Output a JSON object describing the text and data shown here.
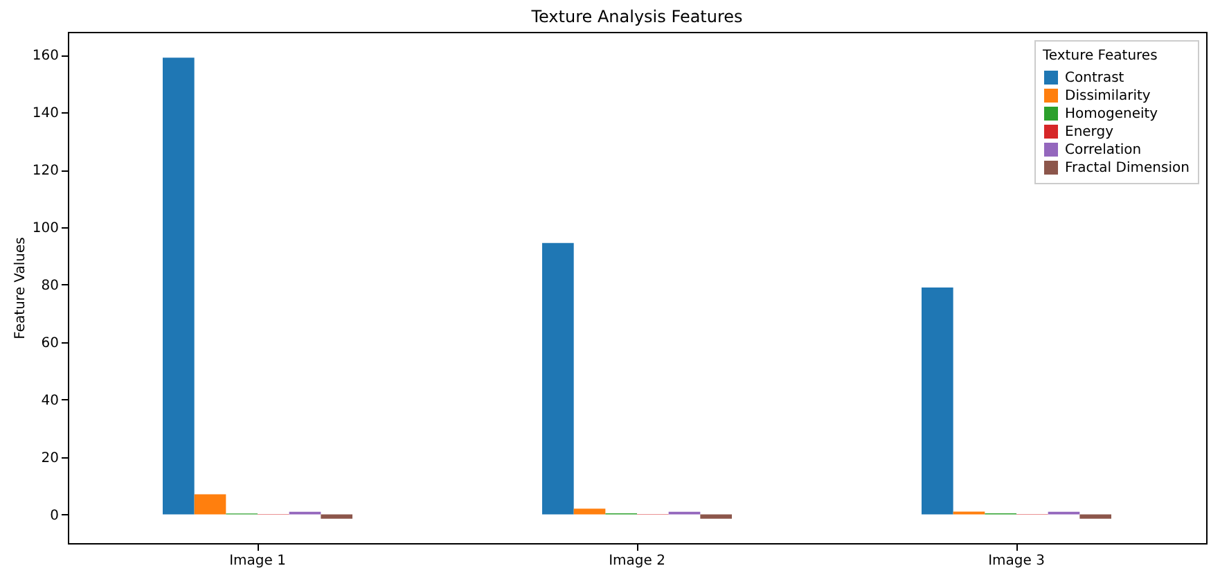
{
  "chart_data": {
    "type": "bar",
    "title": "Texture Analysis Features",
    "ylabel": "Feature Values",
    "legend_title": "Texture Features",
    "categories": [
      "Image 1",
      "Image 2",
      "Image 3"
    ],
    "series": [
      {
        "name": "Contrast",
        "color": "#1f77b4",
        "values": [
          159,
          94.5,
          79
        ]
      },
      {
        "name": "Dissimilarity",
        "color": "#ff7f0e",
        "values": [
          7,
          2,
          1
        ]
      },
      {
        "name": "Homogeneity",
        "color": "#2ca02c",
        "values": [
          0.3,
          0.4,
          0.4
        ]
      },
      {
        "name": "Energy",
        "color": "#d62728",
        "values": [
          0.1,
          0.1,
          0.1
        ]
      },
      {
        "name": "Correlation",
        "color": "#9467bd",
        "values": [
          0.9,
          0.9,
          0.9
        ]
      },
      {
        "name": "Fractal Dimension",
        "color": "#8c564b",
        "values": [
          -1.5,
          -1.5,
          -1.5
        ]
      }
    ],
    "ylim": [
      -10,
      168
    ],
    "yticks": [
      0,
      20,
      40,
      60,
      80,
      100,
      120,
      140,
      160
    ],
    "grid": false,
    "legend": "top right"
  }
}
